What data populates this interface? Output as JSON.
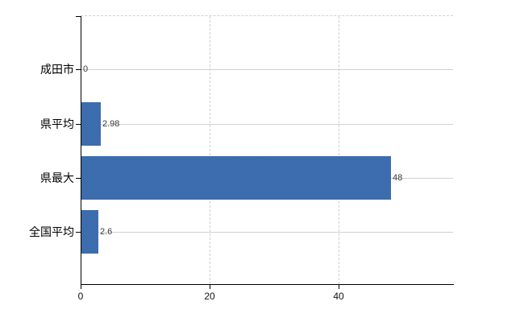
{
  "chart": {
    "title": "",
    "background_color": "#ffffff",
    "bar_color": "#3c6cac",
    "bar_dither_light": "#4d7cbc",
    "bar_dither_dark": "#2b5d9e",
    "axis_color": "#000000",
    "gridline_color": "#ccd4ca",
    "dashed_gridline_color": "#ccd2cc",
    "top_border_color": "#d8ccd8",
    "value_label_color": "#3a3a3a",
    "tick_label_color": "#111111"
  },
  "chart_data": {
    "type": "bar",
    "orientation": "horizontal",
    "title": "",
    "xlabel": "",
    "ylabel": "",
    "categories": [
      "成田市",
      "県平均",
      "県最大",
      "全国平均"
    ],
    "values": [
      0,
      2.98,
      48,
      2.6
    ],
    "value_labels": [
      "0",
      "2.98",
      "48",
      "2.6"
    ],
    "x_tick_values": [
      0,
      20,
      40
    ],
    "x_tick_labels": [
      "0",
      "20",
      "40"
    ],
    "xlim": [
      0,
      57.75
    ],
    "grid": true,
    "legend": false
  }
}
